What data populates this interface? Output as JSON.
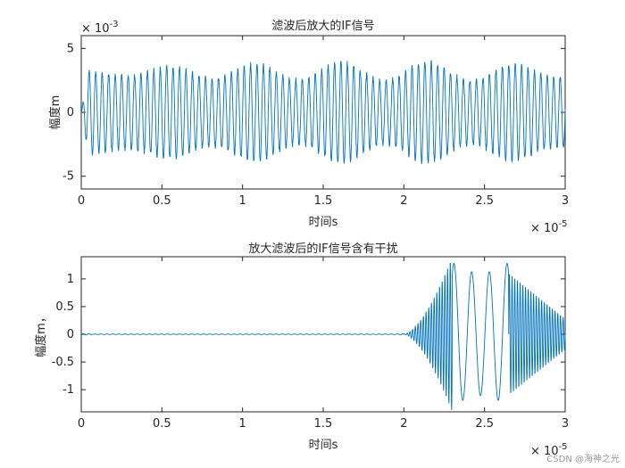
{
  "figure": {
    "watermark": "CSDN @海神之光"
  },
  "chart_data": [
    {
      "type": "line",
      "title": "滤波后放大的IF信号",
      "xlabel": "时间s",
      "ylabel": "幅度m",
      "xlim": [
        0,
        3e-05
      ],
      "ylim": [
        -0.006,
        0.006
      ],
      "x_ticks": [
        0,
        0.5,
        1,
        1.5,
        2,
        2.5,
        3
      ],
      "x_tick_labels": [
        "0",
        "0.5",
        "1",
        "1.5",
        "2",
        "2.5",
        "3"
      ],
      "x_exponent_label": "× 10",
      "x_exponent_power": "-5",
      "y_ticks": [
        -5,
        0,
        5
      ],
      "y_tick_labels": [
        "-5",
        "0",
        "5"
      ],
      "y_exponent_label": "× 10",
      "y_exponent_power": "-3",
      "series_color": "#0072BD",
      "signal": {
        "description_units": "amplitude in m, time in s",
        "dominant_cycles_over_span": 75,
        "amplitude_typical": 0.0035,
        "amplitude_peak_max": 0.004,
        "amplitude_peak_min": -0.0043
      },
      "grid": false
    },
    {
      "type": "line",
      "title": "放大滤波后的IF信号含有干扰",
      "xlabel": "时间s",
      "ylabel": "幅度m，",
      "xlim": [
        0,
        3e-05
      ],
      "ylim": [
        -1.4,
        1.4
      ],
      "x_ticks": [
        0,
        0.5,
        1,
        1.5,
        2,
        2.5,
        3
      ],
      "x_tick_labels": [
        "0",
        "0.5",
        "1",
        "1.5",
        "2",
        "2.5",
        "3"
      ],
      "x_exponent_label": "× 10",
      "x_exponent_power": "-5",
      "y_ticks": [
        -1,
        -0.5,
        0,
        0.5,
        1
      ],
      "y_tick_labels": [
        "-1",
        "-0.5",
        "0",
        "0.5",
        "1"
      ],
      "series_color": "#0072BD",
      "signal": {
        "description_units": "amplitude in m, time in s",
        "quiet_until": 2e-05,
        "interference_start": 2e-05,
        "interference_peak": 1.4,
        "interference_segments": [
          {
            "from": 2e-05,
            "to": 2.3e-05,
            "envelope_peak": 1.4,
            "note": "fast growing oscillation"
          },
          {
            "from": 2.3e-05,
            "to": 2.65e-05,
            "envelope_peak": 1.3,
            "note": "slow chirp"
          },
          {
            "from": 2.65e-05,
            "to": 3e-05,
            "envelope_peak": 1.1,
            "note": "fast decaying oscillation"
          }
        ]
      },
      "grid": false
    }
  ]
}
